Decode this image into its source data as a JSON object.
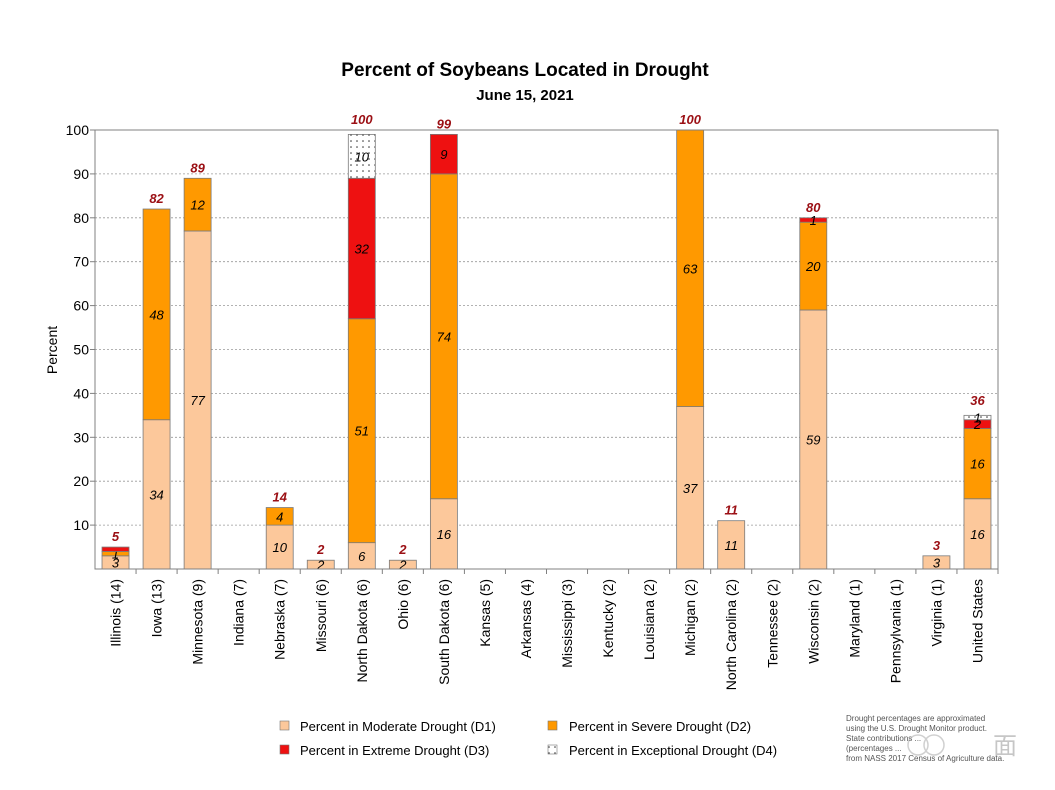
{
  "chart_data": {
    "type": "bar",
    "stacked": true,
    "title": "Percent of Soybeans Located in Drought",
    "subtitle": "June 15, 2021",
    "ylabel": "Percent",
    "xlabel": "",
    "ylim": [
      0,
      100
    ],
    "yticks": [
      10,
      20,
      30,
      40,
      50,
      60,
      70,
      80,
      90,
      100
    ],
    "grid": true,
    "legend_position": "bottom",
    "categories": [
      "Illinois (14)",
      "Iowa (13)",
      "Minnesota (9)",
      "Indiana (7)",
      "Nebraska (7)",
      "Missouri (6)",
      "North Dakota (6)",
      "Ohio (6)",
      "South Dakota (6)",
      "Kansas (5)",
      "Arkansas (4)",
      "Mississippi (3)",
      "Kentucky (2)",
      "Louisiana (2)",
      "Michigan (2)",
      "North Carolina (2)",
      "Tennessee (2)",
      "Wisconsin (2)",
      "Maryland (1)",
      "Pennsylvania (1)",
      "Virginia (1)",
      "United States"
    ],
    "series": [
      {
        "name": "Percent in Moderate Drought (D1)",
        "color": "#fcc89b",
        "values": [
          3,
          34,
          77,
          0,
          10,
          2,
          6,
          2,
          16,
          0,
          0,
          0,
          0,
          0,
          37,
          11,
          0,
          59,
          0,
          0,
          3,
          16
        ],
        "labels": [
          "3",
          "34",
          "77",
          "",
          "10",
          "2",
          "6",
          "2",
          "16",
          "",
          "",
          "",
          "",
          "",
          "37",
          "11",
          "",
          "59",
          "",
          "",
          "3",
          "16"
        ]
      },
      {
        "name": "Percent in Severe Drought (D2)",
        "color": "#ff9900",
        "values": [
          1,
          48,
          12,
          0,
          4,
          0,
          51,
          0,
          74,
          0,
          0,
          0,
          0,
          0,
          63,
          0,
          0,
          20,
          0,
          0,
          0,
          16
        ],
        "labels": [
          "1",
          "48",
          "12",
          "",
          "4",
          "",
          "51",
          "",
          "74",
          "",
          "",
          "",
          "",
          "",
          "63",
          "",
          "",
          "20",
          "",
          "",
          "",
          "16"
        ]
      },
      {
        "name": "Percent in Extreme Drought (D3)",
        "color": "#ee1111",
        "values": [
          1,
          0,
          0,
          0,
          0,
          0,
          32,
          0,
          9,
          0,
          0,
          0,
          0,
          0,
          0,
          0,
          0,
          1,
          0,
          0,
          0,
          2
        ],
        "labels": [
          "",
          "",
          "",
          "",
          "",
          "",
          "32",
          "",
          "9",
          "",
          "",
          "",
          "",
          "",
          "",
          "",
          "",
          "1",
          "",
          "",
          "",
          "2"
        ]
      },
      {
        "name": "Percent in Exceptional Drought (D4)",
        "color": "#ffffff",
        "values": [
          0,
          0,
          0,
          0,
          0,
          0,
          10,
          0,
          0,
          0,
          0,
          0,
          0,
          0,
          0,
          0,
          0,
          0,
          0,
          0,
          0,
          1
        ],
        "labels": [
          "",
          "",
          "",
          "",
          "",
          "",
          "10",
          "",
          "",
          "",
          "",
          "",
          "",
          "",
          "",
          "",
          "",
          "",
          "",
          "",
          "",
          "1"
        ]
      }
    ],
    "totals": [
      "5",
      "82",
      "89",
      "",
      "14",
      "2",
      "100",
      "2",
      "99",
      "",
      "",
      "",
      "",
      "",
      "100",
      "11",
      "",
      "80",
      "",
      "",
      "3",
      "36"
    ],
    "note": "Drought percentages are approximated using the U.S. Drought Monitor product. State contributions ... (percentages ... from NASS 2017 Census of Agriculture data."
  },
  "watermark": "面"
}
